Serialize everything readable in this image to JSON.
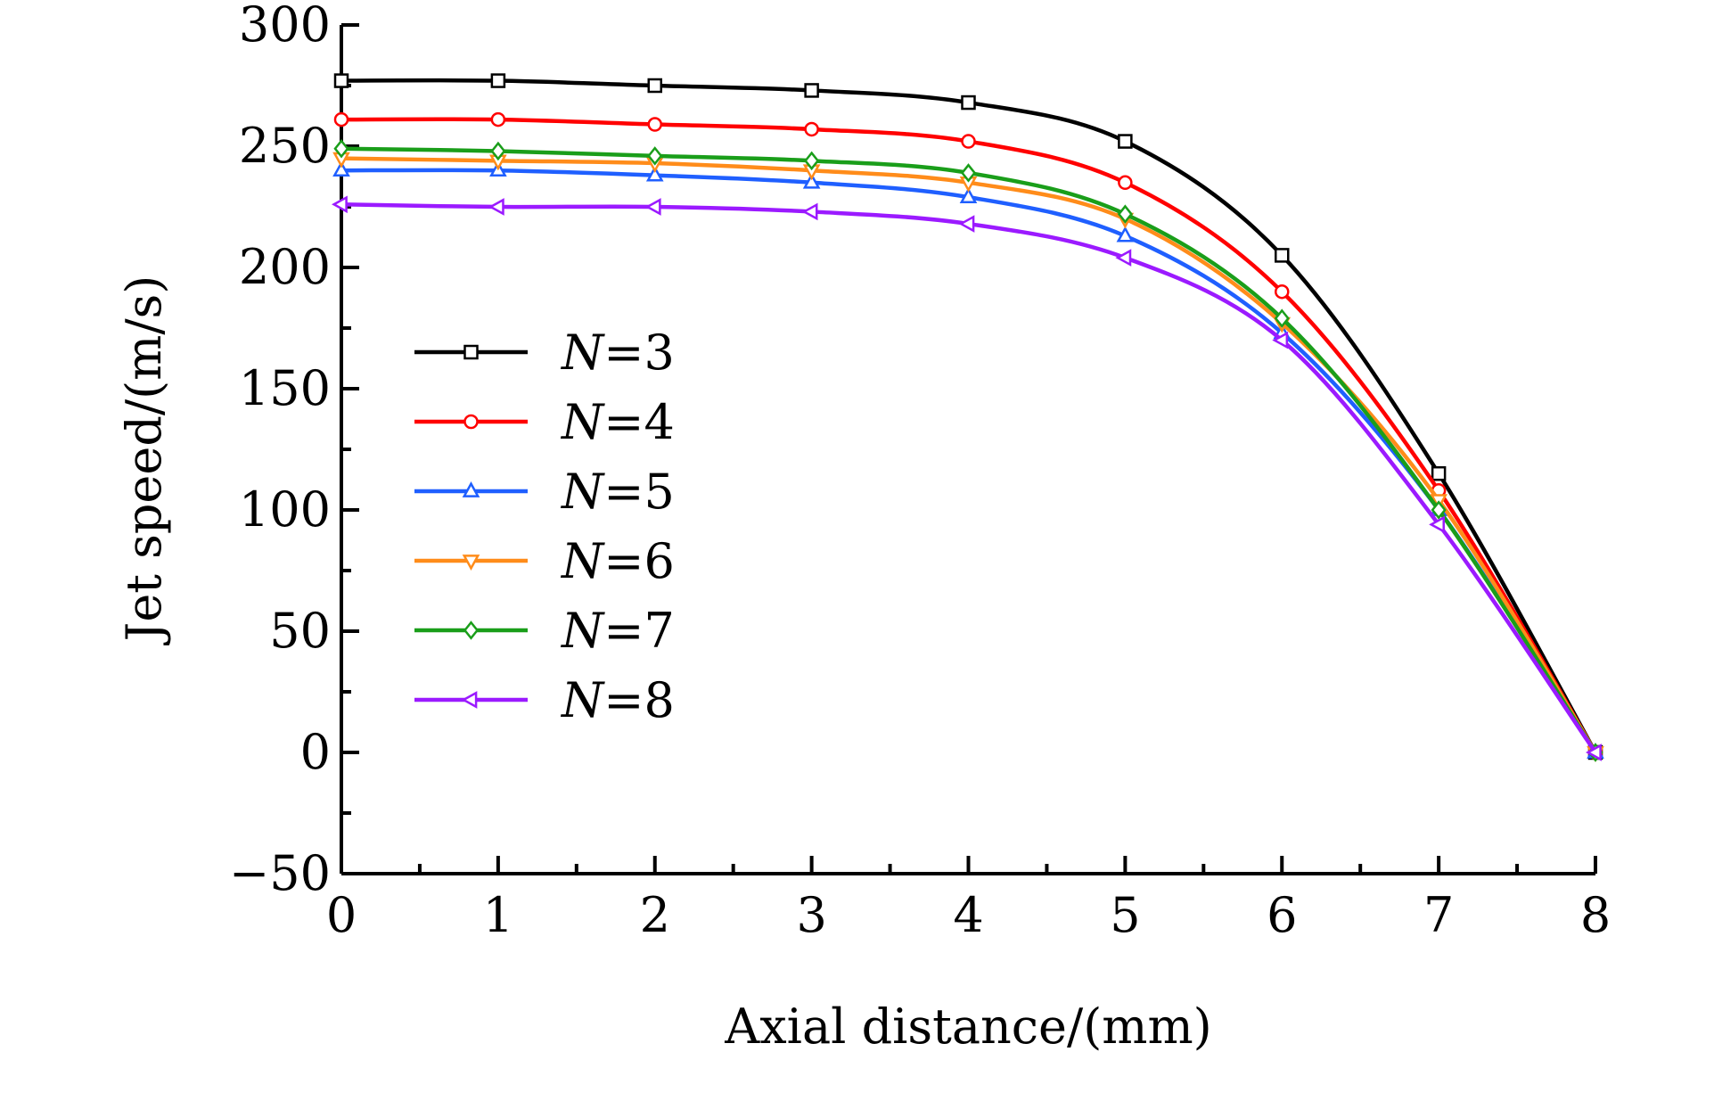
{
  "chart_data": {
    "type": "line",
    "title": "",
    "xlabel": "Axial distance/(mm)",
    "ylabel": "Jet speed/(m/s)",
    "xlim": [
      0,
      8
    ],
    "ylim": [
      -50,
      300
    ],
    "xticks": [
      0,
      1,
      2,
      3,
      4,
      5,
      6,
      7,
      8
    ],
    "yticks": [
      -50,
      0,
      50,
      100,
      150,
      200,
      250,
      300
    ],
    "xtick_labels": [
      "0",
      "1",
      "2",
      "3",
      "4",
      "5",
      "6",
      "7",
      "8"
    ],
    "ytick_labels": [
      "−50",
      "0",
      "50",
      "100",
      "150",
      "200",
      "250",
      "300"
    ],
    "grid": false,
    "legend_position": "center-left",
    "x": [
      0,
      1,
      2,
      3,
      4,
      5,
      6,
      7,
      8
    ],
    "series": [
      {
        "name_prefix": "N",
        "name_suffix": "=3",
        "color": "#000000",
        "marker": "square",
        "values": [
          277,
          277,
          275,
          273,
          268,
          252,
          205,
          115,
          0
        ]
      },
      {
        "name_prefix": "N",
        "name_suffix": "=4",
        "color": "#ff0000",
        "marker": "circle",
        "values": [
          261,
          261,
          259,
          257,
          252,
          235,
          190,
          108,
          0
        ]
      },
      {
        "name_prefix": "N",
        "name_suffix": "=5",
        "color": "#1f5fff",
        "marker": "triangle-up",
        "values": [
          240,
          240,
          238,
          235,
          229,
          213,
          173,
          100,
          0
        ]
      },
      {
        "name_prefix": "N",
        "name_suffix": "=6",
        "color": "#ff8c1a",
        "marker": "triangle-down",
        "values": [
          245,
          244,
          243,
          240,
          235,
          220,
          177,
          104,
          0
        ]
      },
      {
        "name_prefix": "N",
        "name_suffix": "=7",
        "color": "#1a9e1a",
        "marker": "diamond",
        "values": [
          249,
          248,
          246,
          244,
          239,
          222,
          179,
          100,
          0
        ]
      },
      {
        "name_prefix": "N",
        "name_suffix": "=8",
        "color": "#9b1aff",
        "marker": "triangle-left",
        "values": [
          226,
          225,
          225,
          223,
          218,
          204,
          170,
          94,
          0
        ]
      }
    ]
  }
}
